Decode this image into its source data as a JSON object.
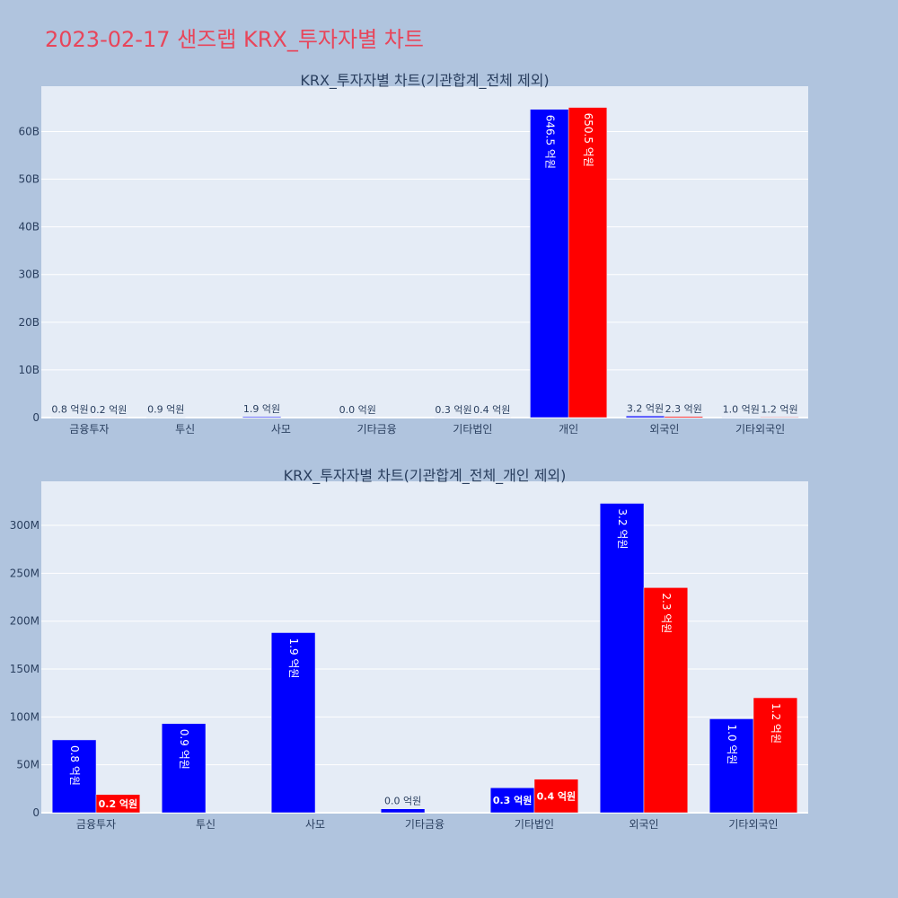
{
  "title": "2023-02-17 샌즈랩 KRX_투자자별 차트",
  "colors": {
    "buy": "#0000ff",
    "sell": "#ff0000",
    "title": "#e8455a",
    "plot_bg": "#e5ecf6",
    "page_bg": "#b0c4de"
  },
  "chart_data": [
    {
      "type": "bar",
      "title": "KRX_투자자별 차트(기관합계_전체 제외)",
      "categories": [
        "금융투자",
        "투신",
        "사모",
        "기타금융",
        "기타법인",
        "개인",
        "외국인",
        "기타외국인"
      ],
      "series": [
        {
          "values": [
            76000000,
            93000000,
            188000000,
            4000000,
            26000000,
            64650000000,
            323000000,
            98000000
          ],
          "labels": [
            "0.8 억원",
            "0.9 억원",
            "1.9 억원",
            "0.0 억원",
            "0.3 억원",
            "646.5 억원",
            "3.2 억원",
            "1.0 억원"
          ]
        },
        {
          "values": [
            19000000,
            0,
            0,
            0,
            35000000,
            65050000000,
            235000000,
            120000000
          ],
          "labels": [
            "0.2 억원",
            "",
            "",
            "",
            "0.4 억원",
            "650.5 억원",
            "2.3 억원",
            "1.2 억원"
          ]
        }
      ],
      "yticks": [
        0,
        10000000000,
        20000000000,
        30000000000,
        40000000000,
        50000000000,
        60000000000
      ],
      "ytick_labels": [
        "0",
        "10B",
        "20B",
        "30B",
        "40B",
        "50B",
        "60B"
      ],
      "ylim": [
        0,
        69500000000
      ]
    },
    {
      "type": "bar",
      "title": "KRX_투자자별 차트(기관합계_전체_개인 제외)",
      "categories": [
        "금융투자",
        "투신",
        "사모",
        "기타금융",
        "기타법인",
        "외국인",
        "기타외국인"
      ],
      "series": [
        {
          "values": [
            76000000,
            93000000,
            188000000,
            4000000,
            26000000,
            323000000,
            98000000
          ],
          "labels": [
            "0.8 억원",
            "0.9 억원",
            "1.9 억원",
            "0.0 억원",
            "0.3 억원",
            "3.2 억원",
            "1.0 억원"
          ]
        },
        {
          "values": [
            19000000,
            0,
            0,
            0,
            35000000,
            235000000,
            120000000
          ],
          "labels": [
            "0.2 억원",
            "",
            "",
            "",
            "0.4 억원",
            "2.3 억원",
            "1.2 억원"
          ]
        }
      ],
      "yticks": [
        0,
        50000000,
        100000000,
        150000000,
        200000000,
        250000000,
        300000000
      ],
      "ytick_labels": [
        "0",
        "50M",
        "100M",
        "150M",
        "200M",
        "250M",
        "300M"
      ],
      "ylim": [
        0,
        346000000
      ]
    }
  ]
}
